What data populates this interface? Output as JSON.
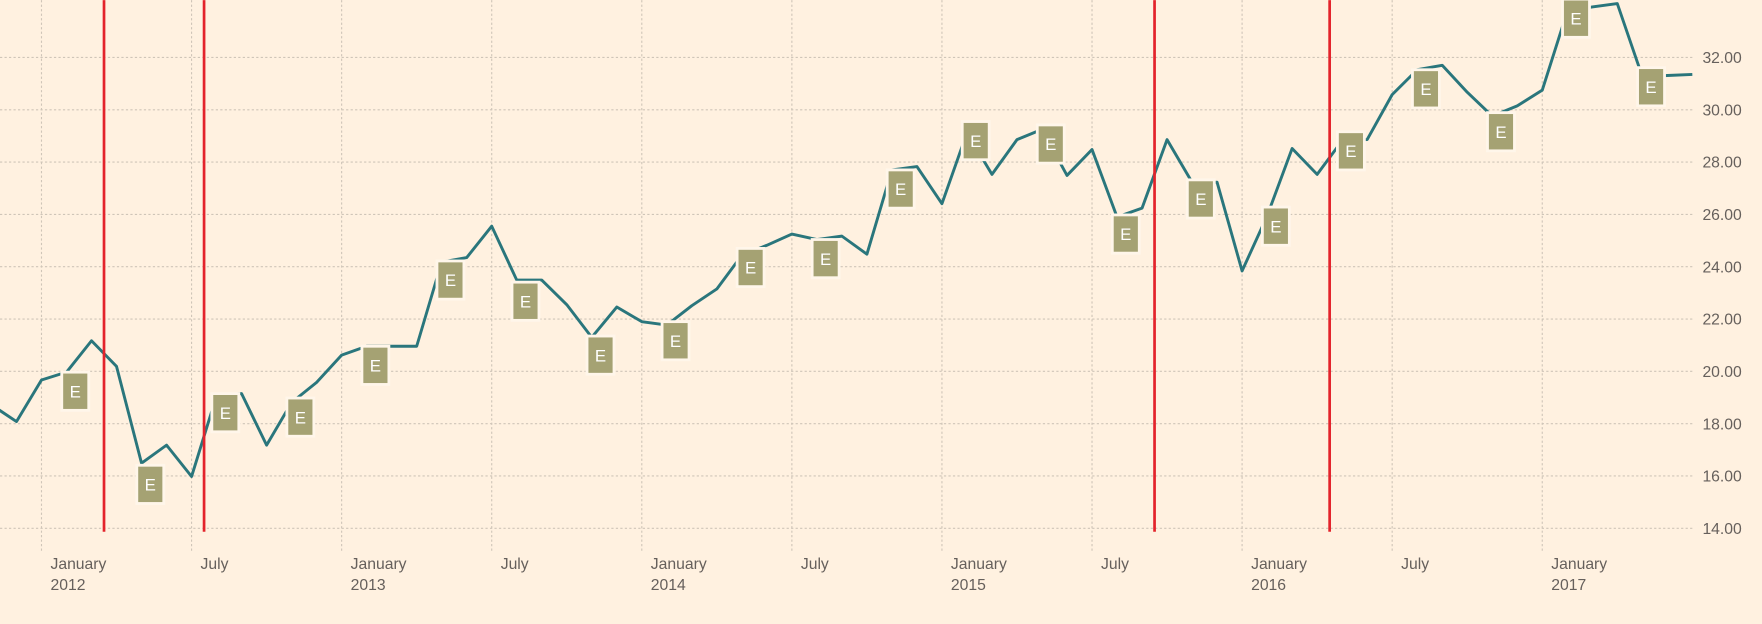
{
  "chart_data": {
    "type": "line",
    "color": "#2a767c",
    "x": [
      "2011-11",
      "2011-12",
      "2012-01",
      "2012-02",
      "2012-03",
      "2012-04",
      "2012-05",
      "2012-06",
      "2012-07",
      "2012-08",
      "2012-09",
      "2012-10",
      "2012-11",
      "2012-12",
      "2013-01",
      "2013-02",
      "2013-03",
      "2013-04",
      "2013-05",
      "2013-06",
      "2013-07",
      "2013-08",
      "2013-09",
      "2013-10",
      "2013-11",
      "2013-12",
      "2014-01",
      "2014-02",
      "2014-03",
      "2014-04",
      "2014-05",
      "2014-06",
      "2014-07",
      "2014-08",
      "2014-09",
      "2014-10",
      "2014-11",
      "2014-12",
      "2015-01",
      "2015-02",
      "2015-03",
      "2015-04",
      "2015-05",
      "2015-06",
      "2015-07",
      "2015-08",
      "2015-09",
      "2015-10",
      "2015-11",
      "2015-12",
      "2016-01",
      "2016-02",
      "2016-03",
      "2016-04",
      "2016-05",
      "2016-06",
      "2016-07",
      "2016-08",
      "2016-09",
      "2016-10",
      "2016-11",
      "2016-12",
      "2017-01",
      "2017-02",
      "2017-03",
      "2017-04",
      "2017-05",
      "2017-06",
      "2017-07"
    ],
    "values": [
      18.72,
      18.08,
      19.67,
      19.97,
      21.17,
      20.19,
      16.49,
      17.18,
      15.98,
      19.07,
      19.15,
      17.18,
      18.81,
      19.58,
      20.62,
      20.96,
      20.96,
      20.96,
      24.18,
      24.35,
      25.55,
      23.49,
      23.49,
      22.55,
      21.3,
      22.46,
      21.9,
      21.77,
      22.51,
      23.15,
      24.44,
      24.82,
      25.25,
      25.04,
      25.17,
      24.48,
      27.7,
      27.83,
      26.41,
      29.12,
      27.53,
      28.86,
      29.25,
      27.49,
      28.48,
      25.9,
      26.24,
      28.86,
      27.23,
      27.23,
      23.84,
      25.94,
      28.52,
      27.53,
      28.82,
      28.86,
      30.58,
      31.53,
      31.7,
      30.67,
      29.76,
      30.15,
      30.75,
      33.76,
      33.93,
      34.06,
      31.27,
      31.31,
      31.35
    ],
    "xlim": [
      "2011-11",
      "2017-07"
    ],
    "ylim": [
      14,
      34.19
    ],
    "yticks": [
      {
        "value": 14,
        "label": "14.00"
      },
      {
        "value": 16,
        "label": "16.00"
      },
      {
        "value": 18,
        "label": "18.00"
      },
      {
        "value": 20,
        "label": "20.00"
      },
      {
        "value": 22,
        "label": "22.00"
      },
      {
        "value": 24,
        "label": "24.00"
      },
      {
        "value": 26,
        "label": "26.00"
      },
      {
        "value": 28,
        "label": "28.00"
      },
      {
        "value": 30,
        "label": "30.00"
      },
      {
        "value": 32,
        "label": "32.00"
      }
    ],
    "xticks": [
      {
        "value": "2012-01",
        "label": [
          "January",
          "2012"
        ]
      },
      {
        "value": "2012-07",
        "label": [
          "July"
        ]
      },
      {
        "value": "2013-01",
        "label": [
          "January",
          "2013"
        ]
      },
      {
        "value": "2013-07",
        "label": [
          "July"
        ]
      },
      {
        "value": "2014-01",
        "label": [
          "January",
          "2014"
        ]
      },
      {
        "value": "2014-07",
        "label": [
          "July"
        ]
      },
      {
        "value": "2015-01",
        "label": [
          "January",
          "2015"
        ]
      },
      {
        "value": "2015-07",
        "label": [
          "July"
        ]
      },
      {
        "value": "2016-01",
        "label": [
          "January",
          "2016"
        ]
      },
      {
        "value": "2016-07",
        "label": [
          "July"
        ]
      },
      {
        "value": "2017-01",
        "label": [
          "January",
          "2017"
        ]
      }
    ],
    "grid": true,
    "event_lines": {
      "color": "#e3232b",
      "x": [
        "2012-03",
        "2012-07",
        "2015-09",
        "2016-04"
      ]
    },
    "annotations": {
      "color": "#a5a273",
      "x": [
        "2012-02",
        "2012-05",
        "2012-08",
        "2012-11",
        "2013-02",
        "2013-05",
        "2013-08",
        "2013-11",
        "2014-02",
        "2014-05",
        "2014-08",
        "2014-11",
        "2015-02",
        "2015-05",
        "2015-08",
        "2015-11",
        "2016-02",
        "2016-05",
        "2016-08",
        "2016-11",
        "2017-02",
        "2017-05"
      ],
      "y": [
        19.24,
        15.68,
        18.42,
        18.25,
        20.23,
        23.49,
        22.68,
        20.62,
        21.17,
        23.97,
        24.31,
        26.97,
        28.82,
        28.69,
        25.25,
        26.59,
        25.55,
        28.43,
        30.8,
        29.16,
        33.5,
        30.88
      ],
      "labels": [
        "E",
        "E",
        "E",
        "E",
        "E",
        "E",
        "E",
        "E",
        "E",
        "E",
        "E",
        "E",
        "E",
        "E",
        "E",
        "E",
        "E",
        "E",
        "E",
        "E",
        "E",
        "E"
      ]
    }
  }
}
